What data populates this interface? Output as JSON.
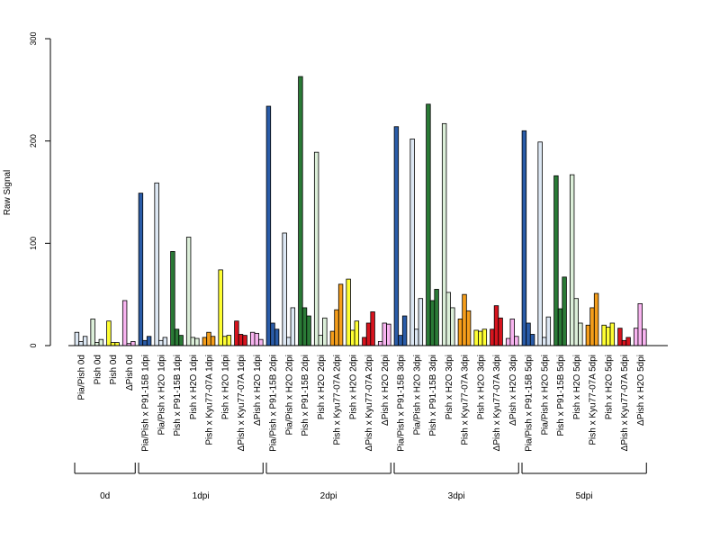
{
  "chart_data": {
    "type": "bar",
    "ylabel": "Raw Signal",
    "xlabel": "",
    "ylim": [
      0,
      300
    ],
    "yticks": [
      "0",
      "100",
      "200",
      "300"
    ],
    "categories": [
      "Pia/Pish 0d",
      "Pish 0d",
      "Pish 0d",
      "ΔPish 0d",
      "Pia/Pish x P91-15B 1dpi",
      "Pia/Pish x H2O 1dpi",
      "Pish x P91-15B 1dpi",
      "Pish x H2O 1dpi",
      "Pish x Kyu77-07A 1dpi",
      "Pish x H2O 1dpi",
      "ΔPish x Kyu77-07A 1dpi",
      "ΔPish x H2O 1dpi",
      "Pia/Pish x P91-15B 2dpi",
      "Pia/Pish x H2O 2dpi",
      "Pish x P91-15B 2dpi",
      "Pish x H2O 2dpi",
      "Pish x Kyu77-07A 2dpi",
      "Pish x H2O 2dpi",
      "ΔPish x Kyu77-07A 2dpi",
      "ΔPish x H2O 2dpi",
      "Pia/Pish x P91-15B 3dpi",
      "Pia/Pish x H2O 3dpi",
      "Pish x P91-15B 3dpi",
      "Pish x H2O 3dpi",
      "Pish x Kyu77-07A 3dpi",
      "Pish x H2O 3dpi",
      "ΔPish x Kyu77-07A 3dpi",
      "ΔPish x H2O 3dpi",
      "Pia/Pish x P91-15B 5dpi",
      "Pia/Pish x H2O 5dpi",
      "Pish x P91-15B 5dpi",
      "Pish x H2O 5dpi",
      "Pish x Kyu77-07A 5dpi",
      "Pish x H2O 5dpi",
      "ΔPish x Kyu77-07A 5dpi",
      "ΔPish x H2O 5dpi"
    ],
    "colors": [
      "#dde8f4",
      "#dcefd9",
      "#ffff33",
      "#f8b4f0",
      "#2a5ca8",
      "#dde8f4",
      "#2a7a36",
      "#dcefd9",
      "#f59e1b",
      "#ffff33",
      "#d7141e",
      "#f8b4f0",
      "#2a5ca8",
      "#dde8f4",
      "#2a7a36",
      "#dcefd9",
      "#f59e1b",
      "#ffff33",
      "#d7141e",
      "#f8b4f0",
      "#2a5ca8",
      "#dde8f4",
      "#2a7a36",
      "#dcefd9",
      "#f59e1b",
      "#ffff33",
      "#d7141e",
      "#f8b4f0",
      "#2a5ca8",
      "#dde8f4",
      "#2a7a36",
      "#dcefd9",
      "#f59e1b",
      "#ffff33",
      "#d7141e",
      "#f8b4f0"
    ],
    "values": [
      [
        13,
        4,
        9
      ],
      [
        26,
        3,
        6
      ],
      [
        24,
        3,
        3
      ],
      [
        44,
        2,
        4
      ],
      [
        149,
        5,
        9
      ],
      [
        159,
        5,
        8
      ],
      [
        92,
        16,
        10
      ],
      [
        106,
        8,
        7
      ],
      [
        8,
        13,
        9
      ],
      [
        74,
        9,
        10
      ],
      [
        24,
        11,
        10
      ],
      [
        13,
        12,
        6
      ],
      [
        234,
        22,
        16
      ],
      [
        110,
        8,
        37
      ],
      [
        263,
        37,
        29
      ],
      [
        189,
        10,
        27
      ],
      [
        14,
        35,
        60
      ],
      [
        65,
        15,
        24
      ],
      [
        8,
        22,
        33
      ],
      [
        4,
        22,
        21
      ],
      [
        214,
        10,
        29
      ],
      [
        202,
        16,
        46
      ],
      [
        236,
        44,
        55
      ],
      [
        217,
        52,
        37
      ],
      [
        26,
        50,
        34
      ],
      [
        15,
        14,
        16
      ],
      [
        16,
        39,
        27
      ],
      [
        7,
        26,
        9
      ],
      [
        210,
        22,
        11
      ],
      [
        199,
        8,
        28
      ],
      [
        166,
        36,
        67
      ],
      [
        167,
        46,
        22
      ],
      [
        20,
        37,
        51
      ],
      [
        20,
        18,
        22
      ],
      [
        17,
        5,
        8
      ],
      [
        17,
        41,
        16
      ]
    ],
    "groups": [
      {
        "label": "0d",
        "start": 0,
        "end": 3
      },
      {
        "label": "1dpi",
        "start": 4,
        "end": 11
      },
      {
        "label": "2dpi",
        "start": 12,
        "end": 19
      },
      {
        "label": "3dpi",
        "start": 20,
        "end": 27
      },
      {
        "label": "5dpi",
        "start": 28,
        "end": 35
      }
    ]
  }
}
